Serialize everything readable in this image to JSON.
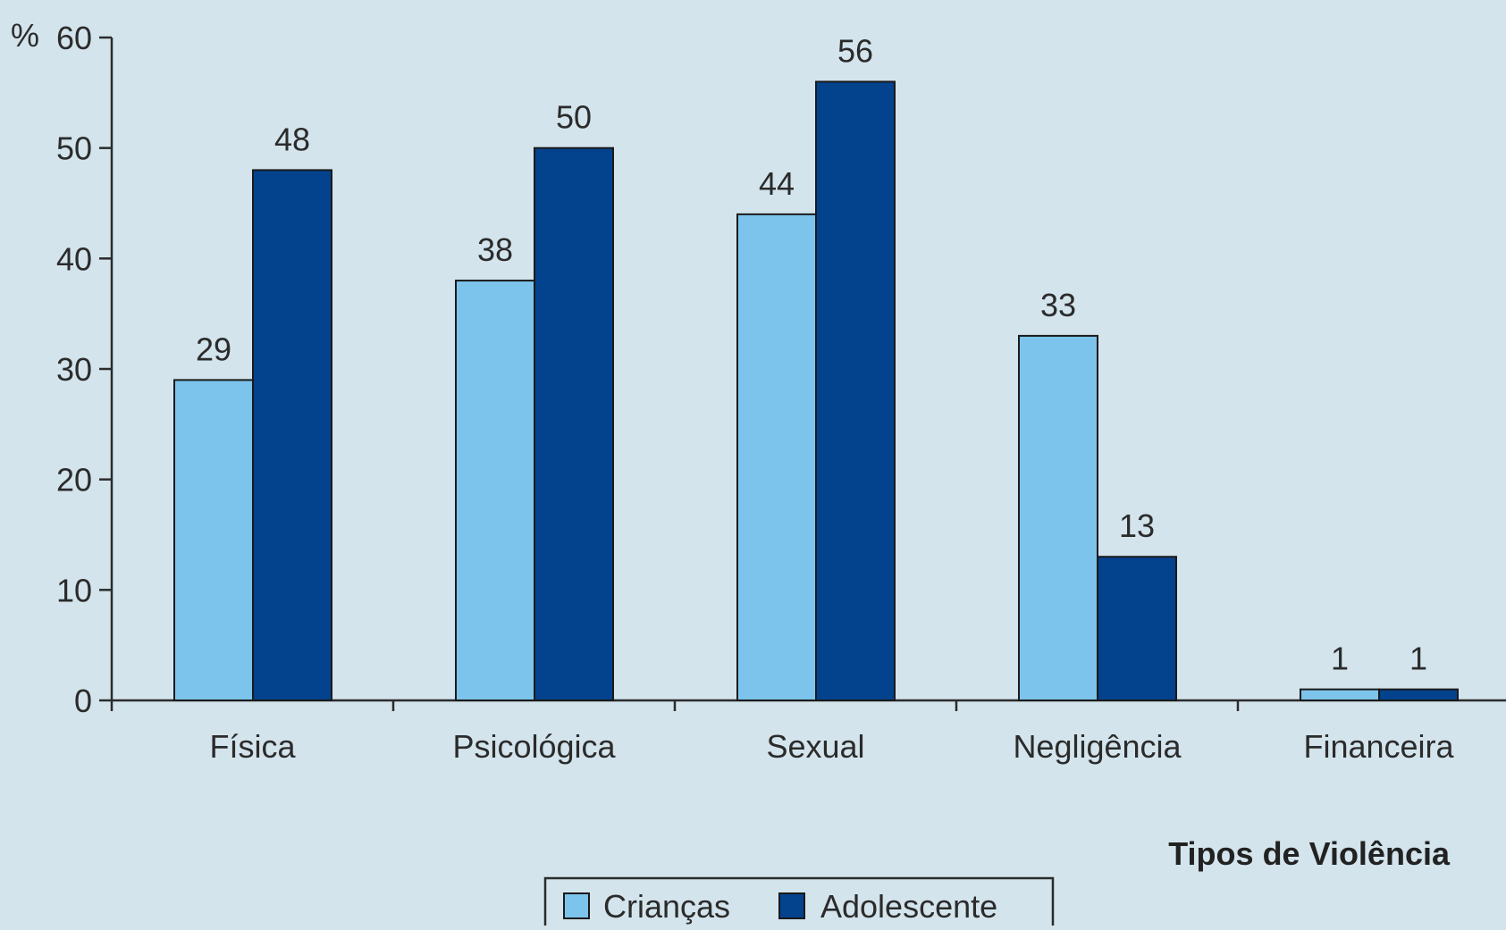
{
  "chart_data": {
    "type": "bar",
    "ylabel": "%",
    "xlabel": "Tipos de Violência",
    "ylim": [
      0,
      60
    ],
    "yticks": [
      0,
      10,
      20,
      30,
      40,
      50,
      60
    ],
    "categories": [
      "Física",
      "Psicológica",
      "Sexual",
      "Negligência",
      "Financeira"
    ],
    "series": [
      {
        "name": "Crianças",
        "values": [
          29,
          38,
          44,
          33,
          1
        ],
        "color": "#7cc4ec"
      },
      {
        "name": "Adolescente",
        "values": [
          48,
          50,
          56,
          13,
          1
        ],
        "color": "#03428d"
      }
    ],
    "legend_position": "bottom-center",
    "grid": false
  }
}
